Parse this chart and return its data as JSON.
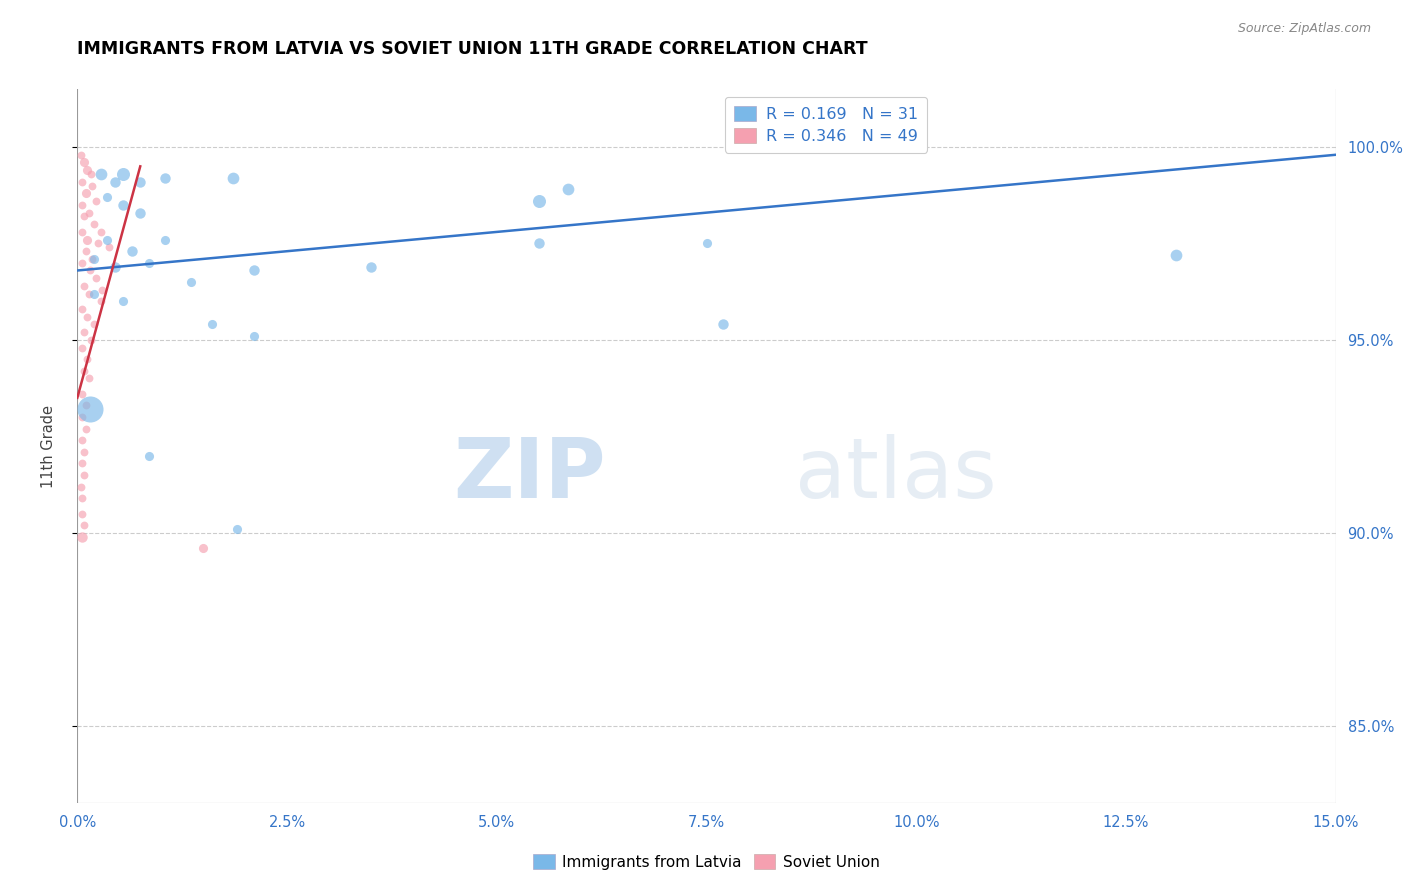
{
  "title": "IMMIGRANTS FROM LATVIA VS SOVIET UNION 11TH GRADE CORRELATION CHART",
  "source": "Source: ZipAtlas.com",
  "ylabel": "11th Grade",
  "watermark_zip": "ZIP",
  "watermark_atlas": "atlas",
  "xmin": 0.0,
  "xmax": 15.0,
  "ymin": 83.0,
  "ymax": 101.5,
  "yticks": [
    85.0,
    90.0,
    95.0,
    100.0
  ],
  "xticks": [
    0.0,
    2.5,
    5.0,
    7.5,
    10.0,
    12.5,
    15.0
  ],
  "legend1_label": "R = 0.169   N = 31",
  "legend2_label": "R = 0.346   N = 49",
  "legend_bottom": [
    "Immigrants from Latvia",
    "Soviet Union"
  ],
  "blue_color": "#7ab8e8",
  "pink_color": "#f5a0b0",
  "trendline_blue": "#3575c8",
  "trendline_red": "#cc3344",
  "blue_trend_x": [
    0.0,
    15.0
  ],
  "blue_trend_y": [
    96.8,
    99.8
  ],
  "red_trend_x": [
    0.0,
    0.75
  ],
  "red_trend_y": [
    93.5,
    99.5
  ],
  "blue_points": [
    [
      0.28,
      99.3,
      18
    ],
    [
      0.45,
      99.1,
      16
    ],
    [
      0.55,
      99.3,
      20
    ],
    [
      0.75,
      99.1,
      16
    ],
    [
      1.05,
      99.2,
      16
    ],
    [
      1.85,
      99.2,
      18
    ],
    [
      0.35,
      98.7,
      14
    ],
    [
      0.55,
      98.5,
      16
    ],
    [
      0.75,
      98.3,
      16
    ],
    [
      0.35,
      97.6,
      14
    ],
    [
      0.65,
      97.3,
      16
    ],
    [
      1.05,
      97.6,
      14
    ],
    [
      0.2,
      97.1,
      14
    ],
    [
      0.45,
      96.9,
      16
    ],
    [
      0.85,
      97.0,
      14
    ],
    [
      1.35,
      96.5,
      14
    ],
    [
      2.1,
      96.8,
      16
    ],
    [
      0.2,
      96.2,
      14
    ],
    [
      0.55,
      96.0,
      14
    ],
    [
      1.6,
      95.4,
      14
    ],
    [
      2.1,
      95.1,
      14
    ],
    [
      3.5,
      96.9,
      16
    ],
    [
      5.5,
      98.6,
      20
    ],
    [
      5.85,
      98.9,
      18
    ],
    [
      0.15,
      93.2,
      40
    ],
    [
      0.85,
      92.0,
      14
    ],
    [
      1.9,
      90.1,
      14
    ],
    [
      7.5,
      97.5,
      14
    ],
    [
      5.5,
      97.5,
      16
    ],
    [
      13.1,
      97.2,
      18
    ],
    [
      7.7,
      95.4,
      16
    ]
  ],
  "pink_points": [
    [
      0.04,
      99.8,
      12
    ],
    [
      0.08,
      99.6,
      14
    ],
    [
      0.12,
      99.4,
      14
    ],
    [
      0.16,
      99.3,
      12
    ],
    [
      0.05,
      99.1,
      12
    ],
    [
      0.18,
      99.0,
      12
    ],
    [
      0.1,
      98.8,
      14
    ],
    [
      0.22,
      98.6,
      12
    ],
    [
      0.06,
      98.5,
      12
    ],
    [
      0.14,
      98.3,
      12
    ],
    [
      0.08,
      98.2,
      12
    ],
    [
      0.2,
      98.0,
      12
    ],
    [
      0.05,
      97.8,
      12
    ],
    [
      0.12,
      97.6,
      14
    ],
    [
      0.25,
      97.5,
      12
    ],
    [
      0.1,
      97.3,
      12
    ],
    [
      0.18,
      97.1,
      12
    ],
    [
      0.06,
      97.0,
      12
    ],
    [
      0.15,
      96.8,
      12
    ],
    [
      0.22,
      96.6,
      12
    ],
    [
      0.08,
      96.4,
      12
    ],
    [
      0.14,
      96.2,
      12
    ],
    [
      0.28,
      96.0,
      12
    ],
    [
      0.06,
      95.8,
      12
    ],
    [
      0.12,
      95.6,
      12
    ],
    [
      0.2,
      95.4,
      12
    ],
    [
      0.08,
      95.2,
      12
    ],
    [
      0.16,
      95.0,
      12
    ],
    [
      0.06,
      94.8,
      12
    ],
    [
      0.12,
      94.5,
      12
    ],
    [
      0.08,
      94.2,
      12
    ],
    [
      0.14,
      94.0,
      12
    ],
    [
      0.06,
      93.6,
      12
    ],
    [
      0.1,
      93.3,
      12
    ],
    [
      0.06,
      93.0,
      12
    ],
    [
      0.1,
      92.7,
      12
    ],
    [
      0.06,
      92.4,
      12
    ],
    [
      0.08,
      92.1,
      12
    ],
    [
      0.05,
      91.8,
      12
    ],
    [
      0.08,
      91.5,
      12
    ],
    [
      0.04,
      91.2,
      12
    ],
    [
      0.06,
      90.9,
      12
    ],
    [
      0.05,
      90.5,
      12
    ],
    [
      0.08,
      90.2,
      12
    ],
    [
      0.05,
      89.9,
      16
    ],
    [
      0.28,
      97.8,
      12
    ],
    [
      0.38,
      97.4,
      12
    ],
    [
      0.3,
      96.3,
      12
    ],
    [
      1.5,
      89.6,
      14
    ]
  ]
}
